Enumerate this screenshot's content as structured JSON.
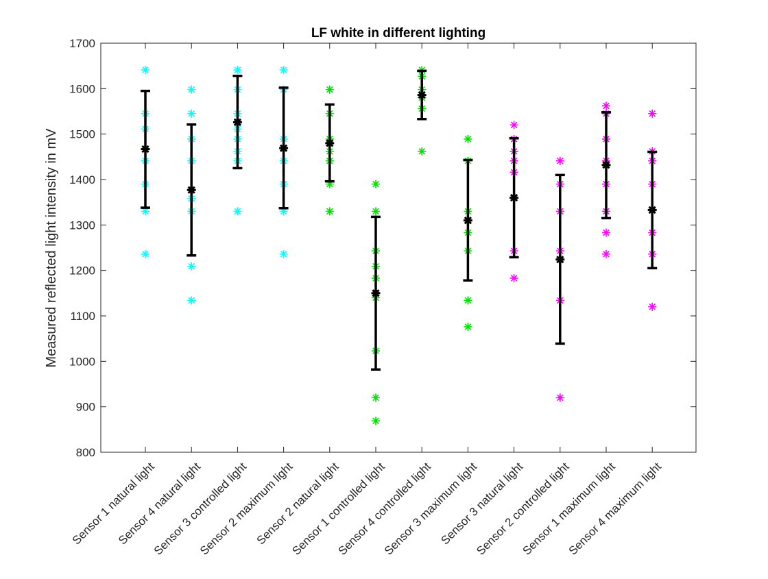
{
  "chart_data": {
    "type": "scatter",
    "title": "LF white in different lighting",
    "xlabel": "",
    "ylabel": "Measured reflected light intensity in mV",
    "ylim": [
      800,
      1700
    ],
    "yticks": [
      800,
      900,
      1000,
      1100,
      1200,
      1300,
      1400,
      1500,
      1600,
      1700
    ],
    "grid": false,
    "legend": "none",
    "categories": [
      "Sensor 1 natural light",
      "Sensor 4 natural light",
      "Sensor 3 controlled light",
      "Sensor 2 maximum light",
      "Sensor 2 natural light",
      "Sensor 1 controlled light",
      "Sensor 4 controlled light",
      "Sensor 3 maximum light",
      "Sensor 3 natural light",
      "Sensor 2 controlled light",
      "Sensor 1 maximum light",
      "Sensor 4 maximum light"
    ],
    "colors": {
      "cyan": "#00FFFF",
      "green": "#00E000",
      "magenta": "#FF00FF",
      "errorbar": "#000000"
    },
    "point_colors": [
      "cyan",
      "cyan",
      "cyan",
      "cyan",
      "green",
      "green",
      "green",
      "green",
      "magenta",
      "magenta",
      "magenta",
      "magenta"
    ],
    "points": [
      [
        1641,
        1545,
        1511,
        1441,
        1390,
        1330,
        1236
      ],
      [
        1598,
        1545,
        1489,
        1441,
        1358,
        1330,
        1209,
        1134
      ],
      [
        1641,
        1598,
        1545,
        1511,
        1489,
        1462,
        1441,
        1330
      ],
      [
        1641,
        1598,
        1489,
        1441,
        1390,
        1330,
        1236
      ],
      [
        1598,
        1545,
        1489,
        1462,
        1441,
        1390,
        1330
      ],
      [
        1390,
        1330,
        1243,
        1209,
        1183,
        1140,
        1023,
        920,
        869
      ],
      [
        1641,
        1627,
        1598,
        1580,
        1556,
        1462
      ],
      [
        1489,
        1441,
        1330,
        1283,
        1243,
        1134,
        1076
      ],
      [
        1520,
        1489,
        1462,
        1441,
        1416,
        1243,
        1183
      ],
      [
        1441,
        1390,
        1330,
        1243,
        1134,
        920
      ],
      [
        1562,
        1545,
        1489,
        1441,
        1390,
        1330,
        1283,
        1236
      ],
      [
        1545,
        1462,
        1441,
        1390,
        1283,
        1236,
        1120
      ]
    ],
    "means": [
      1467,
      1377,
      1526,
      1469,
      1480,
      1150,
      1586,
      1310,
      1360,
      1224,
      1432,
      1333
    ],
    "err_low": [
      1338,
      1233,
      1425,
      1337,
      1396,
      982,
      1533,
      1178,
      1229,
      1039,
      1315,
      1205
    ],
    "err_high": [
      1595,
      1521,
      1628,
      1602,
      1565,
      1318,
      1639,
      1443,
      1491,
      1410,
      1548,
      1461
    ]
  }
}
